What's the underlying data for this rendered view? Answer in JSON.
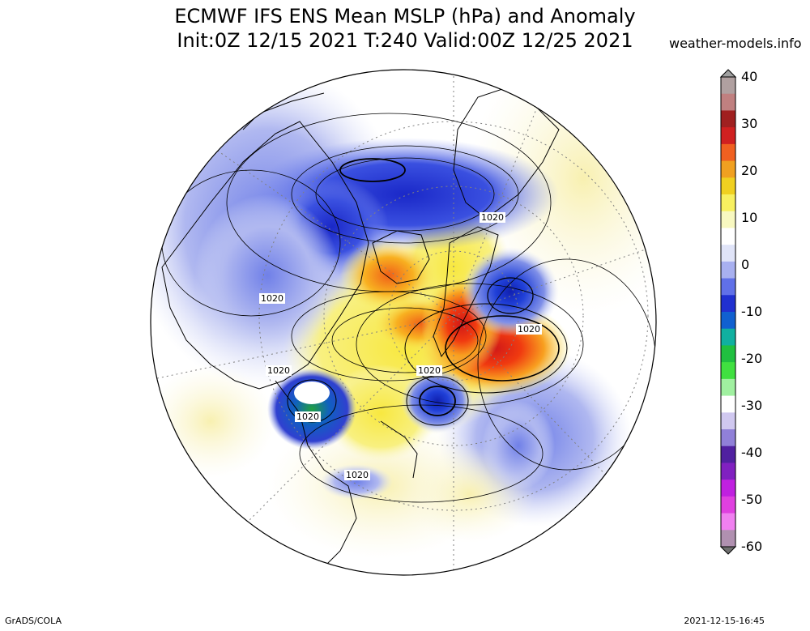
{
  "title": {
    "line1": "ECMWF IFS ENS Mean MSLP (hPa) and Anomaly",
    "line2": "Init:0Z 12/15 2021  T:240 Valid:00Z 12/25 2021"
  },
  "source": "weather-models.info",
  "footer": {
    "left": "GrADS/COLA",
    "right": "2021-12-15-16:45"
  },
  "colorbar": {
    "labels": [
      "40",
      "30",
      "20",
      "10",
      "0",
      "-10",
      "-20",
      "-30",
      "-40",
      "-50",
      "-60"
    ],
    "colors": [
      "#b0a0a0",
      "#c08080",
      "#a02020",
      "#d02020",
      "#f06020",
      "#f0a020",
      "#f0d020",
      "#f8f060",
      "#f8f8c0",
      "#ffffff",
      "#e0e4f8",
      "#a8b0f0",
      "#6070e8",
      "#2030d0",
      "#1060d0",
      "#10b0a0",
      "#20c040",
      "#40e040",
      "#a0f0a0",
      "#ffffff",
      "#d0c8f0",
      "#9080d8",
      "#5020a0",
      "#8020c0",
      "#c020e0",
      "#e040e0",
      "#f080f0",
      "#b090b0"
    ],
    "arrow_color": "#a0a0a0"
  },
  "contour_labels": [
    "1020",
    "1020",
    "1020",
    "1020",
    "1020",
    "1020",
    "1020"
  ],
  "palette": {
    "ocean": "#ffffff",
    "coast": "#000000",
    "contour": "#000000",
    "grid": "#808080"
  }
}
